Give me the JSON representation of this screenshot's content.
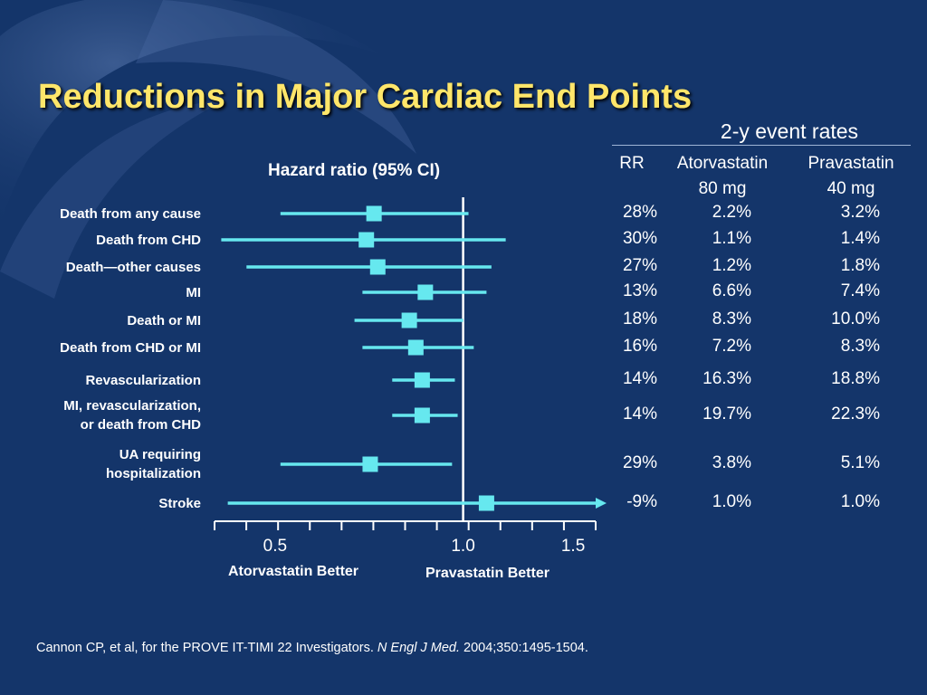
{
  "title": "Reductions in Major Cardiac End Points",
  "table_header": {
    "group": "2-y event rates",
    "rr": "RR",
    "col1": [
      "Atorvastatin",
      "80 mg"
    ],
    "col2": [
      "Pravastatin",
      "40 mg"
    ]
  },
  "chart_data": {
    "type": "forest",
    "xlabel": "Hazard ratio (95% CI)",
    "scale": "log",
    "xlim": [
      0.4,
      1.63
    ],
    "ticks": [
      0.5,
      1.0,
      1.5
    ],
    "tick_labels": [
      "0.5",
      "1.0",
      "1.5"
    ],
    "reference_line": 1.0,
    "left_annotation": "Atorvastatin Better",
    "right_annotation": "Pravastatin Better",
    "marker_color": "#66e8ef",
    "rows": [
      {
        "label": [
          "Death from any cause"
        ],
        "hr": 0.72,
        "lo": 0.51,
        "hi": 1.02,
        "rr": "28%",
        "atorva": "2.2%",
        "prava": "3.2%"
      },
      {
        "label": [
          "Death from CHD"
        ],
        "hr": 0.7,
        "lo": 0.41,
        "hi": 1.17,
        "rr": "30%",
        "atorva": "1.1%",
        "prava": "1.4%"
      },
      {
        "label": [
          "Death—other causes"
        ],
        "hr": 0.73,
        "lo": 0.45,
        "hi": 1.11,
        "rr": "27%",
        "atorva": "1.2%",
        "prava": "1.8%"
      },
      {
        "label": [
          "MI"
        ],
        "hr": 0.87,
        "lo": 0.69,
        "hi": 1.09,
        "rr": "13%",
        "atorva": "6.6%",
        "prava": "7.4%"
      },
      {
        "label": [
          "Death or MI"
        ],
        "hr": 0.82,
        "lo": 0.67,
        "hi": 1.0,
        "rr": "18%",
        "atorva": "8.3%",
        "prava": "10.0%"
      },
      {
        "label": [
          "Death from CHD or MI"
        ],
        "hr": 0.84,
        "lo": 0.69,
        "hi": 1.04,
        "rr": "16%",
        "atorva": "7.2%",
        "prava": "8.3%"
      },
      {
        "label": [
          "Revascularization"
        ],
        "hr": 0.86,
        "lo": 0.77,
        "hi": 0.97,
        "rr": "14%",
        "atorva": "16.3%",
        "prava": "18.8%"
      },
      {
        "label": [
          "MI, revascularization,",
          "or death from CHD"
        ],
        "hr": 0.86,
        "lo": 0.77,
        "hi": 0.98,
        "rr": "14%",
        "atorva": "19.7%",
        "prava": "22.3%"
      },
      {
        "label": [
          "UA requiring",
          "hospitalization"
        ],
        "hr": 0.71,
        "lo": 0.51,
        "hi": 0.96,
        "rr": "29%",
        "atorva": "3.8%",
        "prava": "5.1%"
      },
      {
        "label": [
          "Stroke"
        ],
        "hr": 1.09,
        "lo": 0.42,
        "hi": 1.63,
        "rr": "-9%",
        "atorva": "1.0%",
        "prava": "1.0%"
      }
    ]
  },
  "citation": {
    "authors": "Cannon CP, et al, for the PROVE IT-TIMI 22 Investigators. ",
    "journal": "N Engl J Med.",
    "details": " 2004;350:1495-1504."
  },
  "colors": {
    "background": "#14356a",
    "title": "#ffe66a",
    "marker": "#66e8ef",
    "text": "#ffffff"
  }
}
